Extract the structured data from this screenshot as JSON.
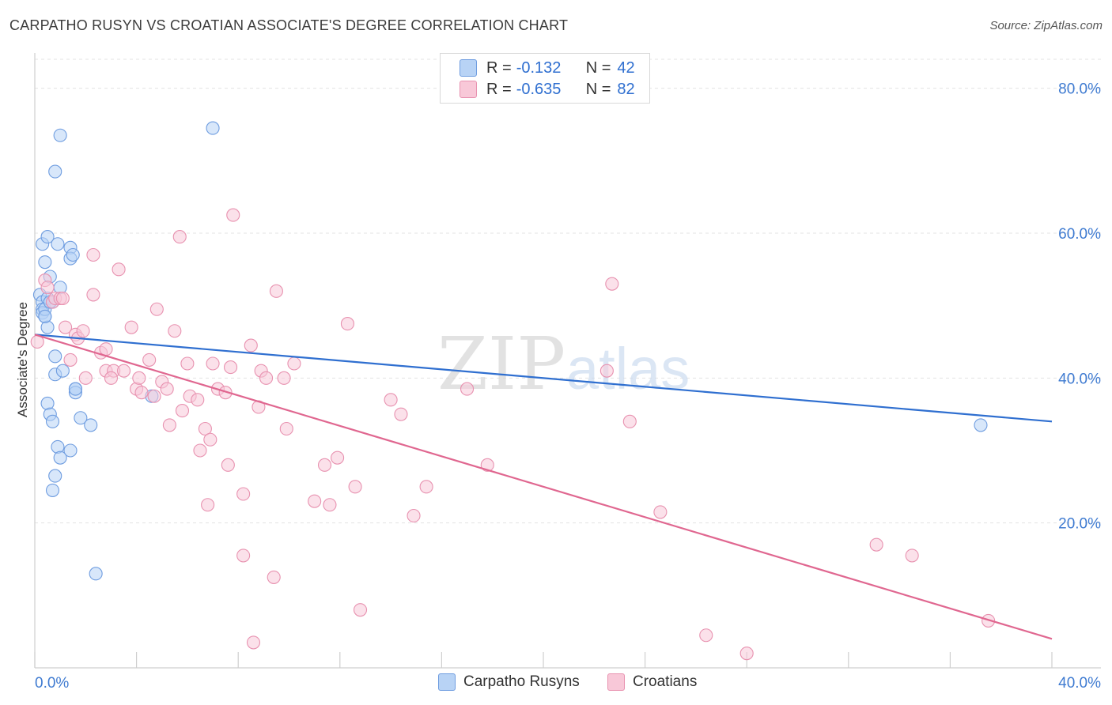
{
  "header": {
    "title": "CARPATHO RUSYN VS CROATIAN ASSOCIATE'S DEGREE CORRELATION CHART",
    "source": "Source: ZipAtlas.com"
  },
  "watermark": {
    "part1": "ZIP",
    "part2": "atlas"
  },
  "legend": {
    "series": [
      {
        "name": "Carpatho Rusyns",
        "r_label": "R =",
        "r_value": "-0.132",
        "n_label": "N =",
        "n_value": "42",
        "fill": "#b8d3f5",
        "stroke": "#6f9de0"
      },
      {
        "name": "Croatians",
        "r_label": "R =",
        "r_value": "-0.635",
        "n_label": "N =",
        "n_value": "82",
        "fill": "#f8c8d8",
        "stroke": "#e892b0"
      }
    ]
  },
  "chart_data": {
    "type": "scatter",
    "title": "CARPATHO RUSYN VS CROATIAN ASSOCIATE'S DEGREE CORRELATION CHART",
    "xlabel": "",
    "ylabel": "Associate's Degree",
    "xlim": [
      0,
      40
    ],
    "ylim": [
      0,
      84
    ],
    "x_tick_labels": [
      "0.0%",
      "40.0%"
    ],
    "y_ticks": [
      20,
      40,
      60,
      80
    ],
    "y_tick_labels": [
      "20.0%",
      "40.0%",
      "60.0%",
      "80.0%"
    ],
    "grid": true,
    "series": [
      {
        "name": "Carpatho Rusyns",
        "color": "#6f9de0",
        "fill": "#b8d3f5",
        "line_color": "#2f6fd0",
        "trend": {
          "x": [
            0,
            40
          ],
          "y": [
            46.0,
            34.0
          ]
        },
        "points": [
          [
            0.2,
            51.5
          ],
          [
            0.3,
            50.5
          ],
          [
            0.3,
            49.5
          ],
          [
            0.3,
            49
          ],
          [
            0.4,
            48.5
          ],
          [
            0.4,
            49.5
          ],
          [
            0.5,
            51
          ],
          [
            0.5,
            47
          ],
          [
            0.3,
            58.5
          ],
          [
            0.4,
            56
          ],
          [
            0.5,
            59.5
          ],
          [
            0.6,
            54
          ],
          [
            0.7,
            50.5
          ],
          [
            0.8,
            43
          ],
          [
            0.8,
            40.5
          ],
          [
            0.9,
            58.5
          ],
          [
            1.0,
            52.5
          ],
          [
            1.0,
            73.5
          ],
          [
            0.8,
            68.5
          ],
          [
            1.1,
            41
          ],
          [
            1.4,
            58
          ],
          [
            1.4,
            56.5
          ],
          [
            1.5,
            57
          ],
          [
            1.6,
            38.5
          ],
          [
            1.6,
            38
          ],
          [
            1.6,
            38.5
          ],
          [
            0.5,
            36.5
          ],
          [
            0.6,
            35
          ],
          [
            0.7,
            34
          ],
          [
            0.9,
            30.5
          ],
          [
            1.0,
            29
          ],
          [
            1.4,
            30
          ],
          [
            1.8,
            34.5
          ],
          [
            2.2,
            33.5
          ],
          [
            0.8,
            26.5
          ],
          [
            0.7,
            24.5
          ],
          [
            2.4,
            13
          ],
          [
            4.6,
            37.5
          ],
          [
            7.0,
            74.5
          ],
          [
            37.2,
            33.5
          ],
          [
            0.6,
            50.5
          ],
          [
            0.4,
            48.5
          ]
        ]
      },
      {
        "name": "Croatians",
        "color": "#e892b0",
        "fill": "#f8c8d8",
        "line_color": "#e06790",
        "trend": {
          "x": [
            0,
            40
          ],
          "y": [
            46.0,
            4.0
          ]
        },
        "points": [
          [
            0.1,
            45
          ],
          [
            0.4,
            53.5
          ],
          [
            0.5,
            52.5
          ],
          [
            0.7,
            50.5
          ],
          [
            0.8,
            51
          ],
          [
            1.0,
            51
          ],
          [
            1.2,
            47
          ],
          [
            1.4,
            42.5
          ],
          [
            1.6,
            46
          ],
          [
            1.7,
            45.5
          ],
          [
            1.9,
            46.5
          ],
          [
            2.0,
            40
          ],
          [
            2.3,
            57
          ],
          [
            2.3,
            51.5
          ],
          [
            2.6,
            43.5
          ],
          [
            2.8,
            44
          ],
          [
            2.8,
            41
          ],
          [
            3.1,
            41
          ],
          [
            3.3,
            55
          ],
          [
            3.5,
            41
          ],
          [
            3.8,
            47
          ],
          [
            4.0,
            38.5
          ],
          [
            4.1,
            40
          ],
          [
            4.2,
            38
          ],
          [
            4.5,
            42.5
          ],
          [
            4.7,
            37.5
          ],
          [
            4.8,
            49.5
          ],
          [
            5.0,
            39.5
          ],
          [
            5.2,
            38.5
          ],
          [
            5.3,
            33.5
          ],
          [
            5.5,
            46.5
          ],
          [
            5.7,
            59.5
          ],
          [
            5.8,
            35.5
          ],
          [
            6.0,
            42
          ],
          [
            6.1,
            37.5
          ],
          [
            6.4,
            37
          ],
          [
            6.5,
            30
          ],
          [
            6.7,
            33
          ],
          [
            6.8,
            22.5
          ],
          [
            6.9,
            31.5
          ],
          [
            7.0,
            42
          ],
          [
            7.2,
            38.5
          ],
          [
            7.5,
            38
          ],
          [
            7.6,
            28
          ],
          [
            7.7,
            41.5
          ],
          [
            7.8,
            62.5
          ],
          [
            8.2,
            24
          ],
          [
            8.2,
            15.5
          ],
          [
            8.5,
            44.5
          ],
          [
            8.6,
            3.5
          ],
          [
            8.8,
            36
          ],
          [
            8.9,
            41
          ],
          [
            9.1,
            40
          ],
          [
            9.4,
            12.5
          ],
          [
            9.5,
            52
          ],
          [
            9.8,
            40
          ],
          [
            9.9,
            33
          ],
          [
            10.2,
            42
          ],
          [
            11.0,
            23
          ],
          [
            11.4,
            28
          ],
          [
            11.6,
            22.5
          ],
          [
            11.9,
            29
          ],
          [
            12.3,
            47.5
          ],
          [
            12.6,
            25
          ],
          [
            12.8,
            8
          ],
          [
            14.0,
            37
          ],
          [
            14.4,
            35
          ],
          [
            14.9,
            21
          ],
          [
            15.4,
            25
          ],
          [
            17.0,
            38.5
          ],
          [
            17.8,
            28
          ],
          [
            22.5,
            41
          ],
          [
            22.7,
            53
          ],
          [
            23.4,
            34
          ],
          [
            24.6,
            21.5
          ],
          [
            26.4,
            4.5
          ],
          [
            28.0,
            2
          ],
          [
            33.1,
            17
          ],
          [
            34.5,
            15.5
          ],
          [
            37.5,
            6.5
          ],
          [
            3.0,
            40
          ],
          [
            1.1,
            51
          ]
        ]
      }
    ]
  }
}
